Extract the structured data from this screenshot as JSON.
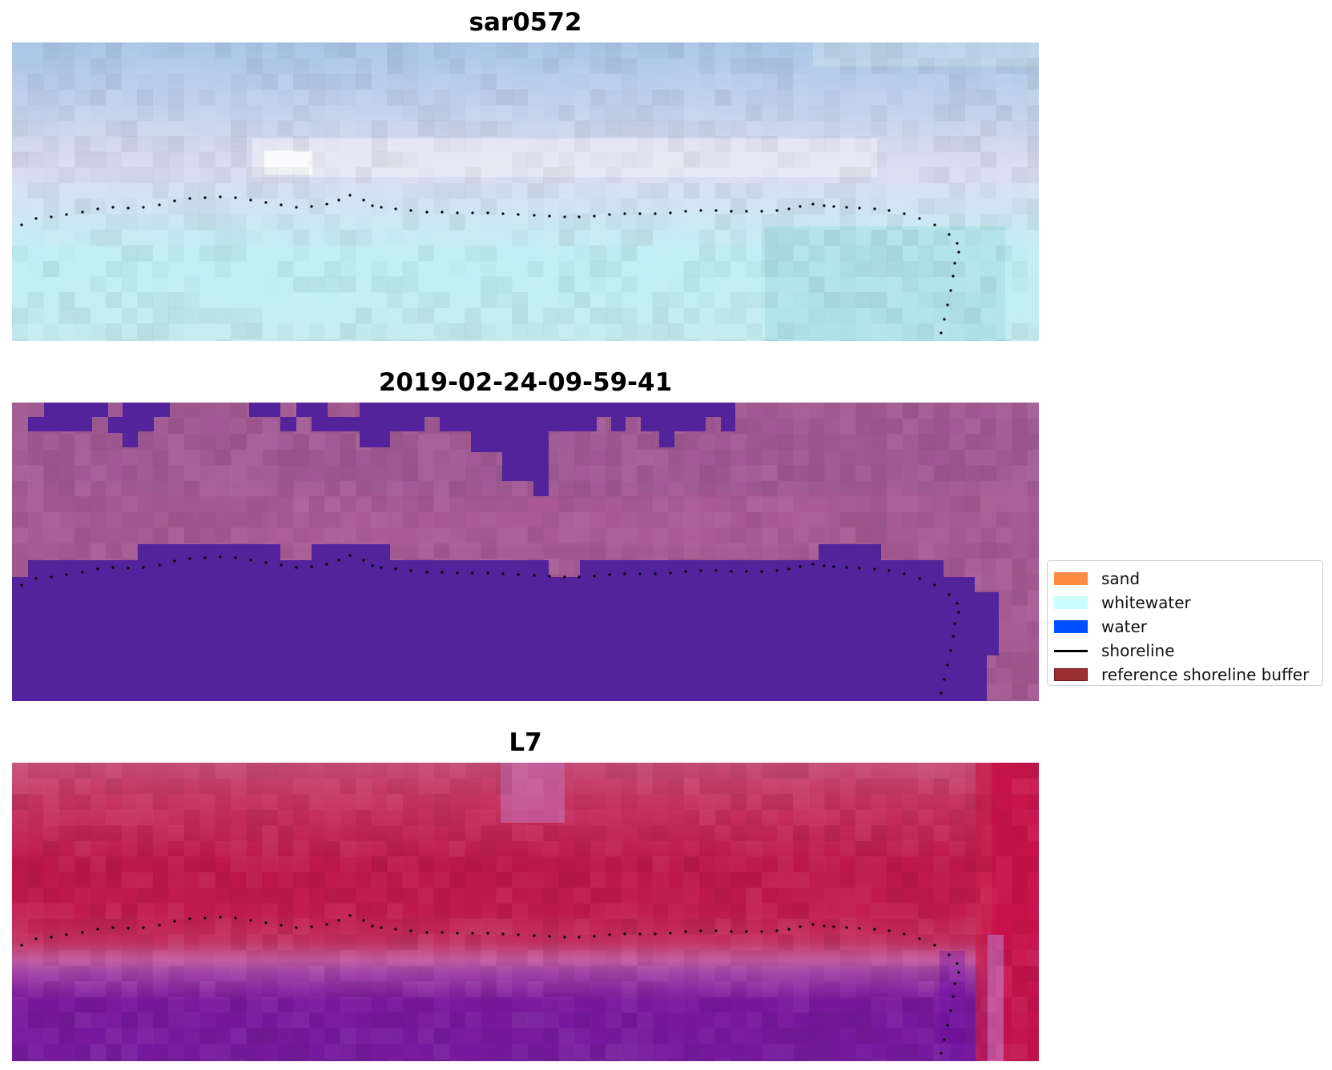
{
  "panels": [
    {
      "title": "sar0572"
    },
    {
      "title": "2019-02-24-09-59-41"
    },
    {
      "title": "L7"
    }
  ],
  "legend": {
    "items": [
      {
        "label": "sand",
        "kind": "patch",
        "color": "#ff8c42",
        "edge": "#ff8c42"
      },
      {
        "label": "whitewater",
        "kind": "patch",
        "color": "#c8fffc",
        "edge": "#c8fffc"
      },
      {
        "label": "water",
        "kind": "patch",
        "color": "#0050ff",
        "edge": "#0050ff"
      },
      {
        "label": "shoreline",
        "kind": "line",
        "color": "#000000"
      },
      {
        "label": "reference shoreline buffer",
        "kind": "patch",
        "color": "#9b2f35",
        "edge": "#6b1a1e"
      }
    ]
  },
  "colors": {
    "sar_sky": "#b4cbe6",
    "sar_band": "#dcdcf0",
    "sar_sea": "#b8ecef",
    "class_land": "#a55a92",
    "class_water": "#52239a",
    "l7_land": "#c5235a",
    "l7_edge": "#c1579c",
    "l7_sea": "#70169a"
  }
}
